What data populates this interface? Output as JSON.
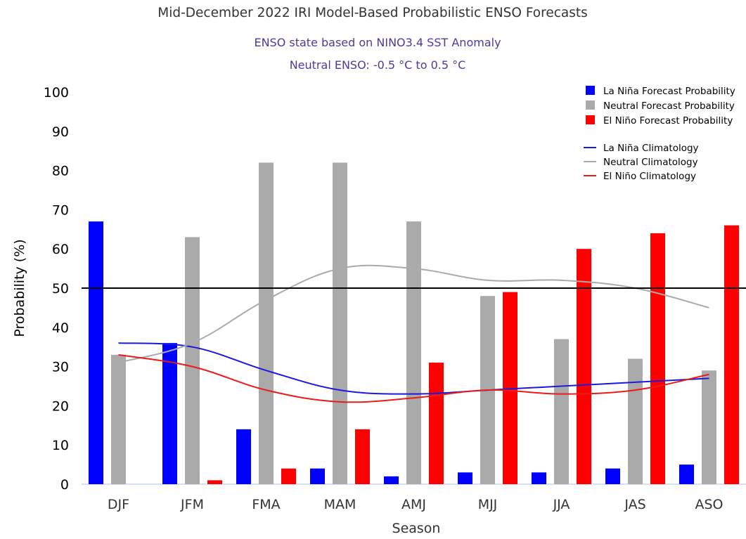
{
  "chart_data": {
    "type": "bar",
    "title": "Mid-December 2022 IRI Model-Based Probabilistic ENSO Forecasts",
    "subtitle_lines": [
      "ENSO state based on NINO3.4 SST Anomaly",
      "Neutral ENSO: -0.5 °C to 0.5 °C"
    ],
    "xlabel": "Season",
    "ylabel": "Probability (%)",
    "ylim": [
      0,
      100
    ],
    "yticks": [
      0,
      10,
      20,
      30,
      40,
      50,
      60,
      70,
      80,
      90,
      100
    ],
    "grid": false,
    "legend_position": "top-right",
    "reference_line": 50,
    "categories": [
      "DJF",
      "JFM",
      "FMA",
      "MAM",
      "AMJ",
      "MJJ",
      "JJA",
      "JAS",
      "ASO"
    ],
    "series": [
      {
        "name": "La Niña Forecast Probability",
        "kind": "bar",
        "color": "#0000ff",
        "values": [
          67,
          36,
          14,
          4,
          2,
          3,
          3,
          4,
          5
        ]
      },
      {
        "name": "Neutral Forecast Probability",
        "kind": "bar",
        "color": "#aaaaaa",
        "values": [
          33,
          63,
          82,
          82,
          67,
          48,
          37,
          32,
          29
        ]
      },
      {
        "name": "El Niño Forecast Probability",
        "kind": "bar",
        "color": "#ff0000",
        "values": [
          0,
          1,
          4,
          14,
          31,
          49,
          60,
          64,
          66
        ]
      }
    ],
    "climatology": [
      {
        "name": "La Niña Climatology",
        "kind": "line",
        "color": "#1a1adc",
        "values": [
          36,
          35,
          29,
          24,
          23,
          24,
          25,
          26,
          27
        ]
      },
      {
        "name": "Neutral Climatology",
        "kind": "line",
        "color": "#aaaaaa",
        "values": [
          31,
          36,
          47,
          55,
          55,
          52,
          52,
          50,
          45
        ]
      },
      {
        "name": "El Niño Climatology",
        "kind": "line",
        "color": "#ee1a1a",
        "values": [
          33,
          30,
          24,
          21,
          22,
          24,
          23,
          24,
          28
        ]
      }
    ]
  },
  "colors": {
    "title": "#333333",
    "subtitle": "#4b3b9a",
    "axis_text": "#333333",
    "tick_text": "#000000",
    "reference_line": "#000000",
    "axis_line": "#ccd6eb"
  }
}
